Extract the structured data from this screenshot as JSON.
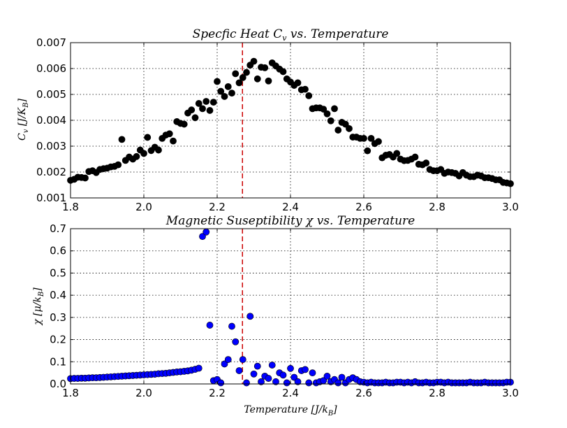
{
  "chart_data": [
    {
      "type": "scatter",
      "title": "Specfic Heat C_v vs. Temperature",
      "xlabel": "",
      "ylabel": "C_v [J/K_B]",
      "xlim": [
        1.8,
        3.0
      ],
      "ylim": [
        0.001,
        0.007
      ],
      "xticks": [
        1.8,
        2.0,
        2.2,
        2.4,
        2.6,
        2.8,
        3.0
      ],
      "xtick_labels": [
        "1.8",
        "2.0",
        "2.2",
        "2.4",
        "2.6",
        "2.8",
        "3.0"
      ],
      "yticks": [
        0.001,
        0.002,
        0.003,
        0.004,
        0.005,
        0.006,
        0.007
      ],
      "ytick_labels": [
        "0.001",
        "0.002",
        "0.003",
        "0.004",
        "0.005",
        "0.006",
        "0.007"
      ],
      "grid": true,
      "marker_color": "#000000",
      "critical_line": {
        "x": 2.269,
        "color": "#cc0000"
      },
      "series": [
        {
          "x": [
            1.8,
            1.81,
            1.82,
            1.83,
            1.84,
            1.85,
            1.86,
            1.87,
            1.88,
            1.89,
            1.9,
            1.91,
            1.92,
            1.93,
            1.94,
            1.95,
            1.96,
            1.97,
            1.98,
            1.99,
            2.0,
            2.01,
            2.02,
            2.03,
            2.04,
            2.05,
            2.06,
            2.07,
            2.08,
            2.09,
            2.1,
            2.11,
            2.12,
            2.13,
            2.14,
            2.15,
            2.16,
            2.17,
            2.18,
            2.19,
            2.2,
            2.21,
            2.22,
            2.23,
            2.24,
            2.25,
            2.26,
            2.27,
            2.28,
            2.29,
            2.3,
            2.31,
            2.32,
            2.33,
            2.34,
            2.35,
            2.36,
            2.37,
            2.38,
            2.39,
            2.4,
            2.41,
            2.42,
            2.43,
            2.44,
            2.45,
            2.46,
            2.47,
            2.48,
            2.49,
            2.5,
            2.51,
            2.52,
            2.53,
            2.54,
            2.55,
            2.56,
            2.57,
            2.58,
            2.59,
            2.6,
            2.61,
            2.62,
            2.63,
            2.64,
            2.65,
            2.66,
            2.67,
            2.68,
            2.69,
            2.7,
            2.71,
            2.72,
            2.73,
            2.74,
            2.75,
            2.76,
            2.77,
            2.78,
            2.79,
            2.8,
            2.81,
            2.82,
            2.83,
            2.84,
            2.85,
            2.86,
            2.87,
            2.88,
            2.89,
            2.9,
            2.91,
            2.92,
            2.93,
            2.94,
            2.95,
            2.96,
            2.97,
            2.98,
            2.99,
            3.0
          ],
          "y": [
            0.00168,
            0.00172,
            0.0018,
            0.00179,
            0.00177,
            0.00202,
            0.00205,
            0.00198,
            0.0021,
            0.00213,
            0.00215,
            0.0022,
            0.00222,
            0.00228,
            0.00326,
            0.00245,
            0.00258,
            0.0025,
            0.0026,
            0.00285,
            0.00272,
            0.00334,
            0.00283,
            0.00296,
            0.00285,
            0.0033,
            0.00343,
            0.00348,
            0.0032,
            0.00395,
            0.00388,
            0.00385,
            0.00428,
            0.0044,
            0.0041,
            0.00465,
            0.00445,
            0.00473,
            0.00438,
            0.0047,
            0.0055,
            0.00512,
            0.00492,
            0.0053,
            0.00505,
            0.0058,
            0.00545,
            0.00565,
            0.00585,
            0.00613,
            0.00628,
            0.0056,
            0.00605,
            0.00603,
            0.00552,
            0.00622,
            0.0061,
            0.00598,
            0.00588,
            0.0056,
            0.00548,
            0.00535,
            0.00545,
            0.00518,
            0.0052,
            0.00495,
            0.00445,
            0.00448,
            0.00448,
            0.00443,
            0.00425,
            0.00398,
            0.00445,
            0.00362,
            0.00392,
            0.00385,
            0.00368,
            0.00335,
            0.00335,
            0.0033,
            0.0033,
            0.00282,
            0.0033,
            0.0031,
            0.00318,
            0.00255,
            0.00265,
            0.00268,
            0.00258,
            0.00272,
            0.0025,
            0.00244,
            0.00245,
            0.0025,
            0.00258,
            0.0023,
            0.00228,
            0.00235,
            0.0021,
            0.00205,
            0.00205,
            0.0021,
            0.00195,
            0.002,
            0.00198,
            0.00195,
            0.00185,
            0.00198,
            0.00188,
            0.00182,
            0.00182,
            0.00188,
            0.00185,
            0.00178,
            0.00178,
            0.00175,
            0.0017,
            0.0017,
            0.0016,
            0.00158,
            0.00155
          ]
        }
      ]
    },
    {
      "type": "scatter",
      "title": "Magnetic Suseptibility χ vs. Temperature",
      "xlabel": "Temperature [J/k_B]",
      "ylabel": "χ [μ/k_B]",
      "xlim": [
        1.8,
        3.0
      ],
      "ylim": [
        0.0,
        0.7
      ],
      "xticks": [
        1.8,
        2.0,
        2.2,
        2.4,
        2.6,
        2.8,
        3.0
      ],
      "xtick_labels": [
        "1.8",
        "2.0",
        "2.2",
        "2.4",
        "2.6",
        "2.8",
        "3.0"
      ],
      "yticks": [
        0.0,
        0.1,
        0.2,
        0.3,
        0.4,
        0.5,
        0.6,
        0.7
      ],
      "ytick_labels": [
        "0.0",
        "0.1",
        "0.2",
        "0.3",
        "0.4",
        "0.5",
        "0.6",
        "0.7"
      ],
      "grid": true,
      "marker_color": "#0000ff",
      "critical_line": {
        "x": 2.269,
        "color": "#cc0000"
      },
      "series": [
        {
          "x": [
            1.8,
            1.81,
            1.82,
            1.83,
            1.84,
            1.85,
            1.86,
            1.87,
            1.88,
            1.89,
            1.9,
            1.91,
            1.92,
            1.93,
            1.94,
            1.95,
            1.96,
            1.97,
            1.98,
            1.99,
            2.0,
            2.01,
            2.02,
            2.03,
            2.04,
            2.05,
            2.06,
            2.07,
            2.08,
            2.09,
            2.1,
            2.11,
            2.12,
            2.13,
            2.14,
            2.15,
            2.16,
            2.17,
            2.18,
            2.19,
            2.2,
            2.21,
            2.22,
            2.23,
            2.24,
            2.25,
            2.26,
            2.27,
            2.28,
            2.29,
            2.3,
            2.31,
            2.32,
            2.33,
            2.34,
            2.35,
            2.36,
            2.37,
            2.38,
            2.39,
            2.4,
            2.41,
            2.42,
            2.43,
            2.44,
            2.45,
            2.46,
            2.47,
            2.48,
            2.49,
            2.5,
            2.51,
            2.52,
            2.53,
            2.54,
            2.55,
            2.56,
            2.57,
            2.58,
            2.59,
            2.6,
            2.61,
            2.62,
            2.63,
            2.64,
            2.65,
            2.66,
            2.67,
            2.68,
            2.69,
            2.7,
            2.71,
            2.72,
            2.73,
            2.74,
            2.75,
            2.76,
            2.77,
            2.78,
            2.79,
            2.8,
            2.81,
            2.82,
            2.83,
            2.84,
            2.85,
            2.86,
            2.87,
            2.88,
            2.89,
            2.9,
            2.91,
            2.92,
            2.93,
            2.94,
            2.95,
            2.96,
            2.97,
            2.98,
            2.99,
            3.0
          ],
          "y": [
            0.024,
            0.025,
            0.025,
            0.026,
            0.026,
            0.027,
            0.028,
            0.028,
            0.029,
            0.03,
            0.031,
            0.032,
            0.033,
            0.034,
            0.035,
            0.036,
            0.037,
            0.038,
            0.039,
            0.04,
            0.041,
            0.042,
            0.043,
            0.044,
            0.046,
            0.047,
            0.048,
            0.05,
            0.052,
            0.054,
            0.055,
            0.057,
            0.059,
            0.062,
            0.066,
            0.071,
            0.665,
            0.685,
            0.265,
            0.015,
            0.02,
            0.005,
            0.09,
            0.11,
            0.26,
            0.19,
            0.06,
            0.11,
            0.005,
            0.305,
            0.045,
            0.08,
            0.01,
            0.035,
            0.025,
            0.085,
            0.01,
            0.05,
            0.04,
            0.005,
            0.07,
            0.03,
            0.01,
            0.06,
            0.065,
            0.005,
            0.05,
            0.005,
            0.01,
            0.015,
            0.035,
            0.01,
            0.02,
            0.005,
            0.03,
            0.005,
            0.02,
            0.028,
            0.02,
            0.01,
            0.008,
            0.005,
            0.008,
            0.005,
            0.005,
            0.005,
            0.008,
            0.005,
            0.005,
            0.008,
            0.008,
            0.005,
            0.008,
            0.005,
            0.01,
            0.005,
            0.005,
            0.008,
            0.005,
            0.005,
            0.008,
            0.008,
            0.005,
            0.008,
            0.005,
            0.005,
            0.005,
            0.005,
            0.005,
            0.008,
            0.005,
            0.005,
            0.005,
            0.008,
            0.005,
            0.005,
            0.005,
            0.005,
            0.005,
            0.008,
            0.008
          ]
        }
      ]
    }
  ]
}
